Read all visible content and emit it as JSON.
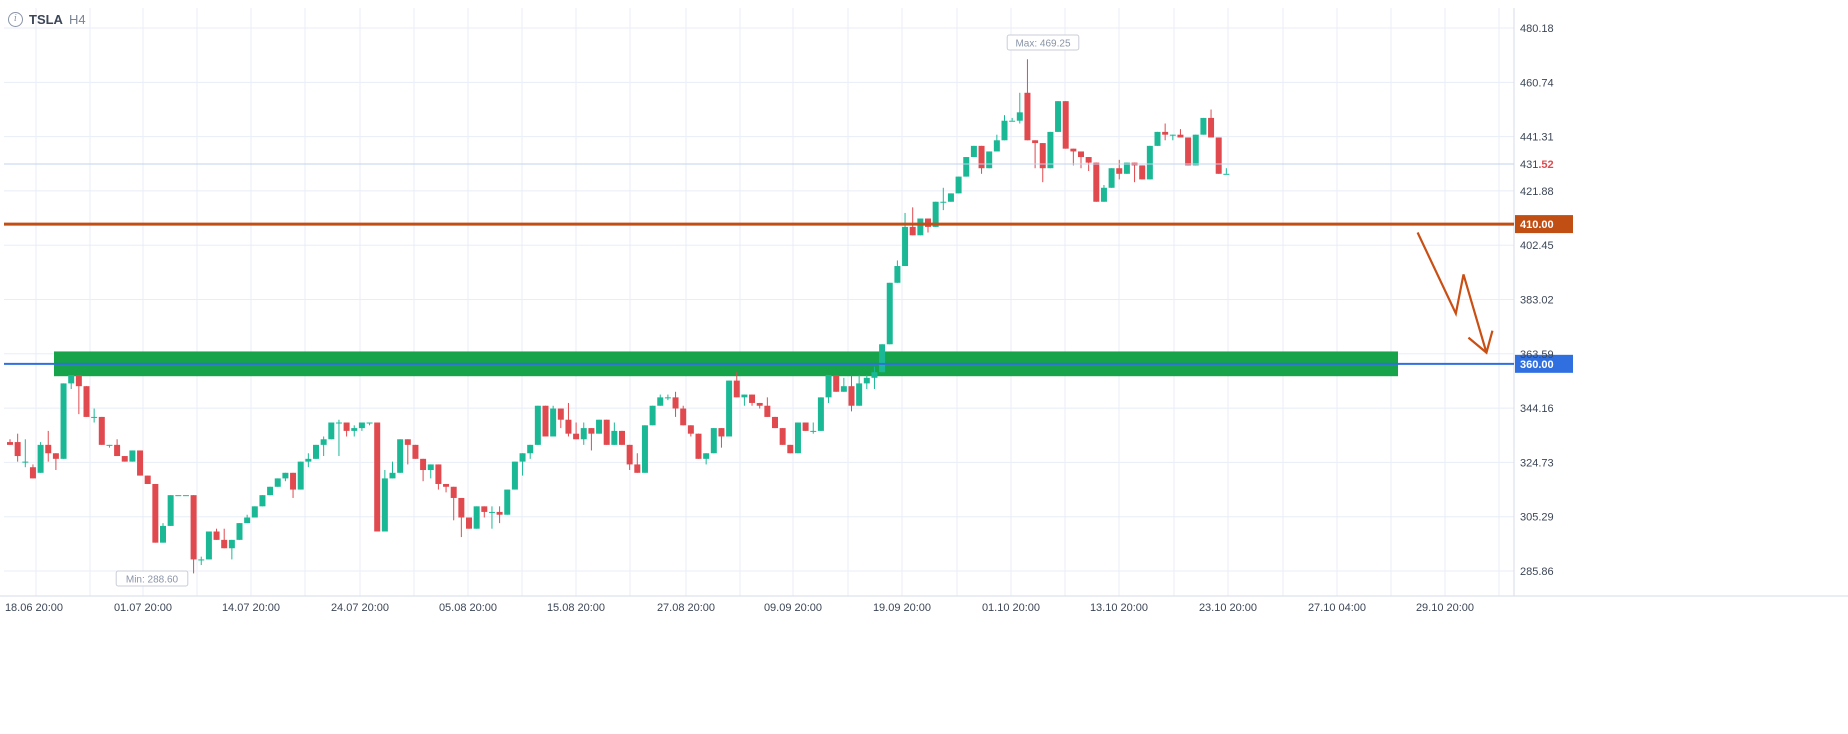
{
  "header": {
    "info_icon": "info-icon",
    "symbol": "TSLA",
    "timeframe": "H4"
  },
  "colors": {
    "up": "#1bb896",
    "down": "#e04a4f",
    "grid": "#e8eef7",
    "resistance": "#c14e13",
    "support_line": "#2f6fe0",
    "support_zone": "#16a34a",
    "arrow": "#c94f14",
    "axis_text": "#3c4656"
  },
  "chart_data": {
    "type": "candlestick",
    "symbol": "TSLA",
    "interval": "H4",
    "y_axis": {
      "position": "right",
      "ticks": [
        "480.18",
        "460.74",
        "441.31",
        "421.88",
        "402.45",
        "383.02",
        "363.59",
        "344.16",
        "324.73",
        "305.29",
        "285.86"
      ],
      "range": [
        280,
        485
      ]
    },
    "x_axis": {
      "ticks": [
        "18.06 20:00",
        "01.07 20:00",
        "14.07 20:00",
        "24.07 20:00",
        "05.08 20:00",
        "15.08 20:00",
        "27.08 20:00",
        "09.09 20:00",
        "19.09 20:00",
        "01.10 20:00",
        "13.10 20:00",
        "23.10 20:00",
        "27.10 04:00",
        "29.10 20:00"
      ]
    },
    "grid": true,
    "max_label": "Max: 469.25",
    "min_label": "Min: 288.60",
    "last_price": {
      "main": "431",
      "fraction": ".52",
      "value": 431.52
    },
    "levels": [
      {
        "name": "resistance",
        "value": 410.0,
        "label": "410.00"
      },
      {
        "name": "support",
        "value": 360.0,
        "label": "360.00"
      }
    ],
    "support_zone": {
      "from": 357,
      "to": 363
    },
    "projected_path": [
      {
        "candle": 184,
        "price": 407
      },
      {
        "candle": 189,
        "price": 378
      },
      {
        "candle": 190,
        "price": 392
      },
      {
        "candle": 193,
        "price": 364
      }
    ],
    "candles": [
      [
        332,
        333,
        331,
        332
      ],
      [
        332,
        335,
        327,
        325
      ],
      [
        325,
        333,
        325,
        323
      ],
      [
        323,
        324,
        319,
        321
      ],
      [
        321,
        332,
        331,
        321
      ],
      [
        331,
        336,
        328,
        325
      ],
      [
        328,
        328,
        326,
        322
      ],
      [
        326,
        345,
        353,
        326
      ],
      [
        353,
        352,
        356,
        351
      ],
      [
        356,
        351,
        352,
        342
      ],
      [
        352,
        350,
        341,
        348
      ],
      [
        341,
        344,
        341,
        339
      ],
      [
        341,
        331,
        331,
        335
      ],
      [
        331,
        331,
        331,
        330
      ],
      [
        331,
        333,
        327,
        330
      ],
      [
        327,
        327,
        325,
        325
      ],
      [
        325,
        329,
        329,
        327
      ],
      [
        329,
        326,
        320,
        326
      ],
      [
        320,
        318,
        317,
        320
      ],
      [
        317,
        299,
        296,
        306
      ],
      [
        296,
        303,
        302,
        301
      ],
      [
        302,
        311,
        313,
        309
      ],
      [
        313,
        313,
        313,
        313
      ],
      [
        313,
        313,
        313,
        313
      ],
      [
        313,
        285,
        290,
        291
      ],
      [
        290,
        288,
        290,
        291
      ],
      [
        290,
        299,
        300,
        298
      ],
      [
        300,
        300,
        297,
        301
      ],
      [
        297,
        301,
        294,
        299
      ],
      [
        294,
        290,
        297,
        297
      ],
      [
        297,
        297,
        303,
        300
      ],
      [
        303,
        306,
        305,
        306
      ],
      [
        305,
        305,
        309,
        307
      ],
      [
        309,
        313,
        313,
        309
      ],
      [
        313,
        315,
        316,
        315
      ],
      [
        316,
        319,
        319,
        318
      ],
      [
        319,
        320,
        321,
        318
      ],
      [
        321,
        314,
        315,
        312
      ],
      [
        315,
        325,
        325,
        325
      ],
      [
        325,
        328,
        326,
        323
      ],
      [
        326,
        330,
        331,
        331
      ],
      [
        331,
        327,
        333,
        334
      ],
      [
        333,
        339,
        339,
        337
      ],
      [
        339,
        327,
        339,
        340
      ],
      [
        339,
        334,
        336,
        338
      ],
      [
        336,
        338,
        337,
        334
      ],
      [
        337,
        336,
        339,
        338
      ],
      [
        339,
        339,
        339,
        338
      ],
      [
        339,
        302,
        300,
        309
      ],
      [
        300,
        322,
        319,
        314
      ],
      [
        319,
        324,
        321,
        325
      ],
      [
        321,
        330,
        333,
        330
      ],
      [
        333,
        324,
        331,
        325
      ],
      [
        331,
        330,
        326,
        327
      ],
      [
        326,
        320,
        322,
        318
      ],
      [
        322,
        319,
        324,
        324
      ],
      [
        324,
        322,
        317,
        315
      ],
      [
        317,
        314,
        316,
        316
      ],
      [
        316,
        309,
        312,
        304
      ],
      [
        312,
        302,
        305,
        298
      ],
      [
        305,
        304,
        301,
        303
      ],
      [
        301,
        309,
        309,
        306
      ],
      [
        309,
        309,
        307,
        305
      ],
      [
        307,
        301,
        307,
        309
      ],
      [
        307,
        309,
        306,
        303
      ],
      [
        306,
        314,
        315,
        312
      ],
      [
        315,
        318,
        325,
        322
      ],
      [
        325,
        320,
        328,
        321
      ],
      [
        328,
        330,
        331,
        326
      ],
      [
        331,
        335,
        345,
        338
      ],
      [
        345,
        339,
        334,
        345
      ],
      [
        334,
        345,
        344,
        336
      ],
      [
        344,
        339,
        340,
        337
      ],
      [
        340,
        346,
        335,
        334
      ],
      [
        335,
        338,
        333,
        339
      ],
      [
        333,
        339,
        337,
        331
      ],
      [
        337,
        329,
        335,
        333
      ],
      [
        335,
        336,
        340,
        339
      ],
      [
        340,
        340,
        331,
        334
      ],
      [
        331,
        339,
        336,
        332
      ],
      [
        336,
        332,
        331,
        332
      ],
      [
        331,
        330,
        324,
        322
      ],
      [
        324,
        328,
        321,
        322
      ],
      [
        321,
        336,
        338,
        334
      ],
      [
        338,
        343,
        345,
        344
      ],
      [
        345,
        346,
        348,
        349
      ],
      [
        348,
        347,
        348,
        349
      ],
      [
        348,
        350,
        344,
        341
      ],
      [
        344,
        345,
        338,
        343
      ],
      [
        338,
        334,
        335,
        335
      ],
      [
        335,
        333,
        326,
        328
      ],
      [
        326,
        324,
        328,
        328
      ],
      [
        328,
        333,
        337,
        333
      ],
      [
        337,
        330,
        334,
        331
      ],
      [
        334,
        349,
        354,
        352
      ],
      [
        354,
        353,
        348,
        357
      ],
      [
        348,
        345,
        349,
        345
      ],
      [
        349,
        346,
        346,
        345
      ],
      [
        346,
        344,
        345,
        345
      ],
      [
        345,
        347,
        341,
        348
      ],
      [
        341,
        338,
        337,
        339
      ],
      [
        337,
        336,
        331,
        332
      ],
      [
        331,
        330,
        328,
        331
      ],
      [
        328,
        333,
        339,
        335
      ],
      [
        339,
        336,
        336,
        339
      ],
      [
        336,
        339,
        336,
        335
      ],
      [
        336,
        342,
        348,
        345
      ],
      [
        348,
        346,
        356,
        350
      ],
      [
        356,
        352,
        350,
        352
      ],
      [
        350,
        355,
        352,
        355
      ],
      [
        352,
        356,
        345,
        343
      ],
      [
        345,
        356,
        353,
        353
      ],
      [
        353,
        356,
        355,
        351
      ],
      [
        355,
        351,
        357,
        359
      ],
      [
        357,
        360,
        367,
        365
      ],
      [
        367,
        372,
        389,
        376
      ],
      [
        389,
        397,
        395,
        393
      ],
      [
        395,
        397,
        409,
        414
      ],
      [
        409,
        416,
        406,
        407
      ],
      [
        406,
        409,
        412,
        412
      ],
      [
        412,
        412,
        409,
        407
      ],
      [
        409,
        416,
        418,
        418
      ],
      [
        418,
        423,
        418,
        415
      ],
      [
        418,
        420,
        421,
        420
      ],
      [
        421,
        426,
        427,
        427
      ],
      [
        427,
        432,
        434,
        431
      ],
      [
        434,
        436,
        438,
        438
      ],
      [
        438,
        433,
        430,
        428
      ],
      [
        430,
        432,
        436,
        433
      ],
      [
        436,
        442,
        440,
        436
      ],
      [
        440,
        449,
        447,
        446
      ],
      [
        447,
        448,
        447,
        447
      ],
      [
        447,
        446,
        450,
        457
      ],
      [
        457,
        469,
        440,
        440
      ],
      [
        440,
        430,
        439,
        430
      ],
      [
        439,
        425,
        430,
        434
      ],
      [
        430,
        440,
        443,
        443
      ],
      [
        443,
        445,
        454,
        446
      ],
      [
        454,
        450,
        437,
        440
      ],
      [
        437,
        431,
        436,
        434
      ],
      [
        436,
        433,
        434,
        430
      ],
      [
        434,
        431,
        432,
        429
      ],
      [
        432,
        428,
        418,
        419
      ],
      [
        418,
        419,
        423,
        424
      ],
      [
        423,
        427,
        430,
        423
      ],
      [
        430,
        426,
        428,
        433
      ],
      [
        428,
        429,
        432,
        430
      ],
      [
        432,
        425,
        431,
        430
      ],
      [
        431,
        428,
        426,
        426
      ],
      [
        426,
        433,
        438,
        435
      ],
      [
        438,
        443,
        443,
        439
      ],
      [
        443,
        440,
        442,
        446
      ],
      [
        442,
        442,
        442,
        440
      ],
      [
        442,
        441,
        441,
        444
      ],
      [
        441,
        433,
        431,
        438
      ],
      [
        431,
        440,
        442,
        439
      ],
      [
        442,
        444,
        448,
        445
      ],
      [
        448,
        450,
        441,
        451
      ],
      [
        441,
        434,
        428,
        436
      ],
      [
        428,
        430,
        428,
        429
      ]
    ],
    "candle_times": "4h"
  }
}
